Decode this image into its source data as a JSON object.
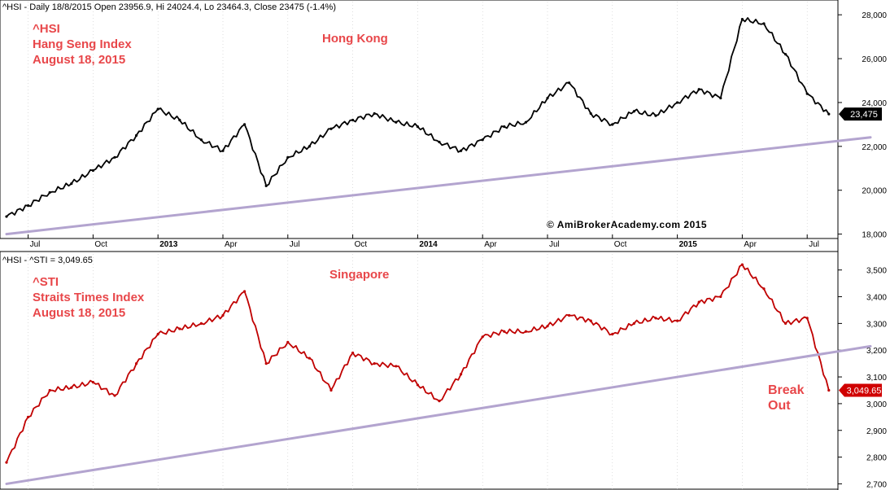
{
  "chart_data": [
    {
      "type": "line",
      "header": "^HSI - Daily 18/8/2015 Open 23956.9, Hi 24024.4, Lo 23464.3, Close 23475 (-1.4%)",
      "annotations": [
        "^HSI",
        "Hang Seng Index",
        "August 18, 2015"
      ],
      "center_label": "Hong Kong",
      "watermark": "© AmiBrokerAcademy.com 2015",
      "x_ticks": [
        "Jul",
        "Oct",
        "2013",
        "Apr",
        "Jul",
        "Oct",
        "2014",
        "Apr",
        "Jul",
        "Oct",
        "2015",
        "Apr",
        "Jul"
      ],
      "y_ticks": [
        "28,000",
        "26,000",
        "24,000",
        "22,000",
        "20,000",
        "18,000"
      ],
      "ylim": [
        17800,
        28600
      ],
      "last_value_label": "23,475",
      "series": [
        {
          "color": "#000000",
          "x": [
            "2012-06",
            "2012-07",
            "2012-08",
            "2012-09",
            "2012-10",
            "2012-11",
            "2012-12",
            "2013-01",
            "2013-02",
            "2013-03",
            "2013-04",
            "2013-05",
            "2013-06",
            "2013-07",
            "2013-08",
            "2013-09",
            "2013-10",
            "2013-11",
            "2013-12",
            "2014-01",
            "2014-02",
            "2014-03",
            "2014-04",
            "2014-05",
            "2014-06",
            "2014-07",
            "2014-08",
            "2014-09",
            "2014-10",
            "2014-11",
            "2014-12",
            "2015-01",
            "2015-02",
            "2015-03",
            "2015-04",
            "2015-05",
            "2015-06",
            "2015-07",
            "2015-08"
          ],
          "values": [
            18800,
            19300,
            19900,
            20300,
            20900,
            21500,
            22500,
            23700,
            23200,
            22300,
            21800,
            23000,
            20200,
            21500,
            22000,
            22800,
            23200,
            23500,
            23100,
            22900,
            22200,
            21800,
            22300,
            22900,
            23100,
            24200,
            24900,
            23500,
            23000,
            23600,
            23400,
            24000,
            24600,
            24200,
            27800,
            27600,
            26200,
            24400,
            23475
          ]
        },
        {
          "name": "trendline",
          "color": "#b3a4cf",
          "x": [
            "2012-06",
            "2015-08"
          ],
          "values": [
            18000,
            22200
          ]
        }
      ]
    },
    {
      "type": "line",
      "header": "^HSI - ^STI = 3,049.65",
      "annotations": [
        "^STI",
        "Straits Times Index",
        "August 18, 2015"
      ],
      "center_label": "Singapore",
      "breakout_label": [
        "Break",
        "Out"
      ],
      "y_ticks": [
        "3,500",
        "3,400",
        "3,300",
        "3,200",
        "3,100",
        "3,000",
        "2,900",
        "2,800",
        "2,700"
      ],
      "ylim": [
        2680,
        3560
      ],
      "last_value_label": "3,049.65",
      "series": [
        {
          "color": "#c00000",
          "x": [
            "2012-06",
            "2012-07",
            "2012-08",
            "2012-09",
            "2012-10",
            "2012-11",
            "2012-12",
            "2013-01",
            "2013-02",
            "2013-03",
            "2013-04",
            "2013-05",
            "2013-06",
            "2013-07",
            "2013-08",
            "2013-09",
            "2013-10",
            "2013-11",
            "2013-12",
            "2014-01",
            "2014-02",
            "2014-03",
            "2014-04",
            "2014-05",
            "2014-06",
            "2014-07",
            "2014-08",
            "2014-09",
            "2014-10",
            "2014-11",
            "2014-12",
            "2015-01",
            "2015-02",
            "2015-03",
            "2015-04",
            "2015-05",
            "2015-06",
            "2015-07",
            "2015-08"
          ],
          "values": [
            2780,
            2950,
            3050,
            3060,
            3080,
            3030,
            3150,
            3260,
            3280,
            3300,
            3330,
            3420,
            3150,
            3230,
            3170,
            3050,
            3190,
            3150,
            3140,
            3070,
            3010,
            3110,
            3250,
            3270,
            3270,
            3290,
            3330,
            3310,
            3260,
            3300,
            3320,
            3310,
            3380,
            3400,
            3520,
            3430,
            3300,
            3320,
            3050
          ]
        },
        {
          "name": "trendline",
          "color": "#b3a4cf",
          "x": [
            "2012-06",
            "2015-08"
          ],
          "values": [
            2700,
            3190
          ]
        }
      ]
    }
  ]
}
